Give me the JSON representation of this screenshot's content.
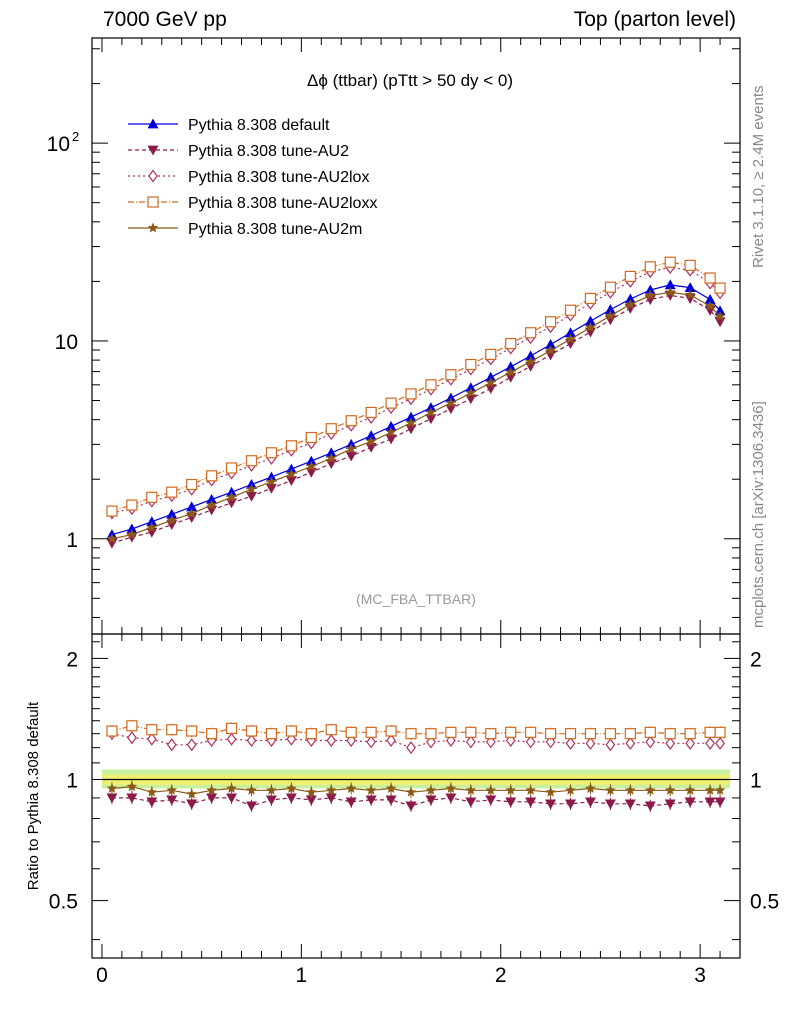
{
  "header": {
    "left": "7000 GeV pp",
    "right": "Top (parton level)"
  },
  "side_labels": {
    "rivet": "Rivet 3.1.10, ≥ 2.4M events",
    "mcplots": "mcplots.cern.ch [arXiv:1306.3436]"
  },
  "chart_data": [
    {
      "type": "line",
      "title": "Δϕ (ttbar) (pTtt > 50 dy < 0)",
      "watermark": "(MC_FBA_TTBAR)",
      "xlabel": "",
      "ylabel": "",
      "xlim": [
        -0.05,
        3.2
      ],
      "ylim": [
        0.33,
        340
      ],
      "yscale": "log",
      "x_ticks": [
        "0",
        "1",
        "2",
        "3"
      ],
      "y_ticks": [
        "1",
        "10",
        "10^2"
      ],
      "legend_position": "top-left",
      "x": [
        0.05,
        0.15,
        0.25,
        0.35,
        0.45,
        0.55,
        0.65,
        0.75,
        0.85,
        0.95,
        1.05,
        1.15,
        1.25,
        1.35,
        1.45,
        1.55,
        1.65,
        1.75,
        1.85,
        1.95,
        2.05,
        2.15,
        2.25,
        2.35,
        2.45,
        2.55,
        2.65,
        2.75,
        2.85,
        2.95,
        3.05,
        3.1
      ],
      "series": [
        {
          "name": "Pythia 8.308 default",
          "color": "#0000dd",
          "marker": "triangle-up",
          "dash": "",
          "values": [
            1.05,
            1.12,
            1.22,
            1.33,
            1.45,
            1.58,
            1.72,
            1.88,
            2.05,
            2.25,
            2.47,
            2.72,
            3.0,
            3.32,
            3.7,
            4.12,
            4.6,
            5.15,
            5.8,
            6.55,
            7.4,
            8.4,
            9.6,
            11.0,
            12.6,
            14.4,
            16.3,
            18.1,
            19.2,
            18.6,
            16.2,
            14.2
          ]
        },
        {
          "name": "Pythia 8.308 tune-AU2",
          "color": "#8b1a4a",
          "marker": "triangle-down",
          "dash": "4,3",
          "values": [
            0.95,
            1.02,
            1.08,
            1.18,
            1.28,
            1.4,
            1.52,
            1.64,
            1.8,
            1.97,
            2.17,
            2.4,
            2.62,
            2.9,
            3.2,
            3.6,
            4.05,
            4.55,
            5.1,
            5.75,
            6.55,
            7.45,
            8.5,
            9.7,
            11.1,
            12.8,
            14.6,
            16.2,
            17.0,
            16.4,
            14.3,
            12.5
          ]
        },
        {
          "name": "Pythia 8.308 tune-AU2lox",
          "color": "#b03060",
          "marker": "diamond-open",
          "dash": "2,3",
          "values": [
            1.35,
            1.42,
            1.55,
            1.65,
            1.78,
            1.98,
            2.15,
            2.35,
            2.55,
            2.8,
            3.05,
            3.4,
            3.75,
            4.1,
            4.6,
            5.1,
            5.7,
            6.4,
            7.2,
            8.1,
            9.2,
            10.4,
            11.8,
            13.5,
            15.5,
            17.6,
            20.0,
            22.4,
            23.5,
            22.8,
            19.6,
            17.5
          ]
        },
        {
          "name": "Pythia 8.308 tune-AU2loxx",
          "color": "#d2691e",
          "marker": "square-open",
          "dash": "6,2,1,2",
          "values": [
            1.38,
            1.48,
            1.62,
            1.72,
            1.88,
            2.08,
            2.28,
            2.48,
            2.72,
            2.95,
            3.25,
            3.6,
            3.95,
            4.35,
            4.85,
            5.4,
            6.0,
            6.75,
            7.6,
            8.55,
            9.7,
            11.0,
            12.5,
            14.3,
            16.4,
            18.7,
            21.2,
            23.7,
            25.0,
            24.1,
            20.8,
            18.5
          ]
        },
        {
          "name": "Pythia 8.308 tune-AU2m",
          "color": "#8b5a14",
          "marker": "star",
          "dash": "",
          "values": [
            1.0,
            1.05,
            1.14,
            1.24,
            1.34,
            1.48,
            1.62,
            1.78,
            1.94,
            2.12,
            2.32,
            2.55,
            2.85,
            3.1,
            3.45,
            3.85,
            4.35,
            4.85,
            5.45,
            6.15,
            6.95,
            7.85,
            8.95,
            10.2,
            11.7,
            13.4,
            15.3,
            17.0,
            17.6,
            17.1,
            15.0,
            13.3
          ]
        }
      ]
    },
    {
      "type": "line",
      "ylabel": "Ratio to Pythia 8.308 default",
      "xlim": [
        -0.05,
        3.2
      ],
      "ylim": [
        0.36,
        2.3
      ],
      "yscale": "log",
      "x_ticks": [
        "0",
        "1",
        "2",
        "3"
      ],
      "y_ticks": [
        "0.5",
        "1",
        "2"
      ],
      "x": [
        0.05,
        0.15,
        0.25,
        0.35,
        0.45,
        0.55,
        0.65,
        0.75,
        0.85,
        0.95,
        1.05,
        1.15,
        1.25,
        1.35,
        1.45,
        1.55,
        1.65,
        1.75,
        1.85,
        1.95,
        2.05,
        2.15,
        2.25,
        2.35,
        2.45,
        2.55,
        2.65,
        2.75,
        2.85,
        2.95,
        3.05,
        3.1
      ],
      "series": [
        {
          "name": "Pythia 8.308 tune-AU2",
          "color": "#8b1a4a",
          "marker": "triangle-down",
          "dash": "4,3",
          "values": [
            0.9,
            0.9,
            0.88,
            0.89,
            0.87,
            0.9,
            0.9,
            0.86,
            0.89,
            0.9,
            0.89,
            0.9,
            0.88,
            0.89,
            0.89,
            0.86,
            0.89,
            0.9,
            0.88,
            0.89,
            0.88,
            0.88,
            0.87,
            0.87,
            0.88,
            0.87,
            0.87,
            0.86,
            0.87,
            0.88,
            0.88,
            0.88
          ]
        },
        {
          "name": "Pythia 8.308 tune-AU2lox",
          "color": "#b03060",
          "marker": "diamond-open",
          "dash": "2,3",
          "values": [
            1.3,
            1.27,
            1.26,
            1.22,
            1.22,
            1.25,
            1.26,
            1.25,
            1.25,
            1.26,
            1.25,
            1.25,
            1.25,
            1.24,
            1.25,
            1.2,
            1.24,
            1.25,
            1.24,
            1.24,
            1.25,
            1.24,
            1.24,
            1.23,
            1.23,
            1.22,
            1.23,
            1.24,
            1.23,
            1.23,
            1.23,
            1.23
          ]
        },
        {
          "name": "Pythia 8.308 tune-AU2loxx",
          "color": "#d2691e",
          "marker": "square-open",
          "dash": "6,2,1,2",
          "values": [
            1.32,
            1.36,
            1.33,
            1.33,
            1.32,
            1.3,
            1.34,
            1.32,
            1.3,
            1.32,
            1.3,
            1.33,
            1.31,
            1.31,
            1.32,
            1.3,
            1.3,
            1.31,
            1.31,
            1.3,
            1.31,
            1.31,
            1.3,
            1.3,
            1.3,
            1.3,
            1.3,
            1.31,
            1.3,
            1.3,
            1.31,
            1.31
          ]
        },
        {
          "name": "Pythia 8.308 tune-AU2m",
          "color": "#8b5a14",
          "marker": "star",
          "dash": "",
          "values": [
            0.95,
            0.96,
            0.93,
            0.94,
            0.92,
            0.94,
            0.95,
            0.94,
            0.94,
            0.95,
            0.93,
            0.94,
            0.95,
            0.94,
            0.95,
            0.93,
            0.94,
            0.95,
            0.94,
            0.94,
            0.94,
            0.94,
            0.93,
            0.94,
            0.95,
            0.94,
            0.94,
            0.94,
            0.94,
            0.94,
            0.94,
            0.94
          ]
        }
      ]
    }
  ]
}
